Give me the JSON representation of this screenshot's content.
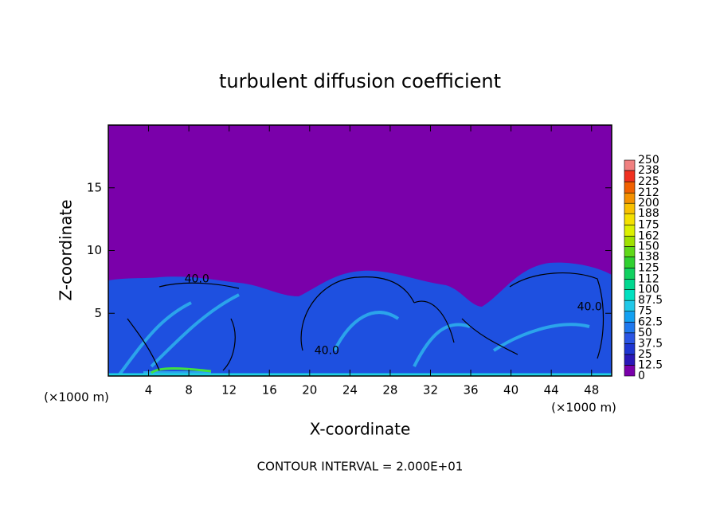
{
  "chart_data": {
    "type": "contour",
    "title": "turbulent diffusion coefficient",
    "x_label": "X-coordinate",
    "y_label": "Z-coordinate",
    "x_unit": "(×1000 m)",
    "y_unit": "(×1000 m)",
    "footer": "CONTOUR INTERVAL = 2.000E+01",
    "xlim": [
      0,
      50
    ],
    "ylim": [
      0,
      20
    ],
    "xticks": [
      4,
      8,
      12,
      16,
      20,
      24,
      28,
      32,
      36,
      40,
      44,
      48
    ],
    "yticks": [
      5,
      10,
      15
    ],
    "colorbar": {
      "ticks": [
        0,
        12.5,
        25,
        37.5,
        50,
        62.5,
        75,
        87.5,
        100,
        112,
        125,
        138,
        150,
        162,
        175,
        188,
        200,
        212,
        225,
        238,
        250
      ],
      "colors": [
        "#7a00aa",
        "#2a18b8",
        "#1e36d2",
        "#2a55e4",
        "#1f78ee",
        "#12a0f2",
        "#20c8e8",
        "#00e0c0",
        "#00d890",
        "#10d060",
        "#30d030",
        "#60d818",
        "#a0e000",
        "#dcf000",
        "#f4e000",
        "#f8c000",
        "#f49000",
        "#f06000",
        "#f03020",
        "#f08080"
      ]
    },
    "annotations": [
      {
        "text": "40.0",
        "x": 8.8,
        "y": 7.7
      },
      {
        "text": "40.0",
        "x": 21.7,
        "y": 2.0
      },
      {
        "text": "40.0",
        "x": 47.8,
        "y": 5.5
      }
    ]
  }
}
